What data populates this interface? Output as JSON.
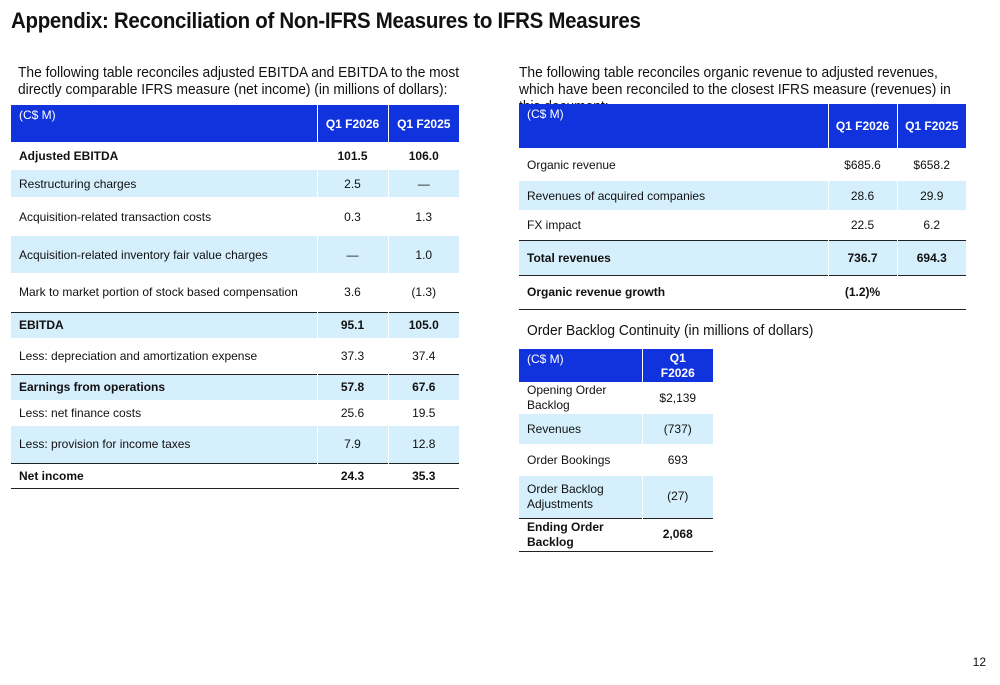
{
  "title": "Appendix: Reconciliation of Non-IFRS Measures to IFRS Measures",
  "page_number": "12",
  "table1": {
    "intro": "The following table reconciles adjusted EBITDA and EBITDA to the most directly comparable IFRS measure (net income) (in millions of dollars):",
    "headers": [
      "(C$ M)",
      "Q1 F2026",
      "Q1 F2025"
    ],
    "rows": [
      {
        "label": "Adjusted EBITDA",
        "v1": "101.5",
        "v2": "106.0"
      },
      {
        "label": "Restructuring charges",
        "v1": "2.5",
        "v2": "—"
      },
      {
        "label": "Acquisition-related transaction costs",
        "v1": "0.3",
        "v2": "1.3"
      },
      {
        "label": "Acquisition-related inventory fair value charges",
        "v1": "—",
        "v2": "1.0"
      },
      {
        "label": "Mark to market portion of stock based compensation",
        "v1": "3.6",
        "v2": "(1.3)"
      },
      {
        "label": "EBITDA",
        "v1": "95.1",
        "v2": "105.0"
      },
      {
        "label": "Less: depreciation and amortization expense",
        "v1": "37.3",
        "v2": "37.4"
      },
      {
        "label": "Earnings from operations",
        "v1": "57.8",
        "v2": "67.6"
      },
      {
        "label": "Less: net finance costs",
        "v1": "25.6",
        "v2": "19.5"
      },
      {
        "label": "Less: provision for income taxes",
        "v1": "7.9",
        "v2": "12.8"
      },
      {
        "label": "Net income",
        "v1": "24.3",
        "v2": "35.3"
      }
    ]
  },
  "table2": {
    "intro": "The following table reconciles organic revenue to adjusted revenues, which have been reconciled to the closest IFRS measure (revenues) in this document:",
    "headers": [
      "(C$ M)",
      "Q1 F2026",
      "Q1 F2025"
    ],
    "rows": [
      {
        "label": "Organic revenue",
        "v1": "$685.6",
        "v2": "$658.2"
      },
      {
        "label": "Revenues of acquired companies",
        "v1": "28.6",
        "v2": "29.9"
      },
      {
        "label": "FX impact",
        "v1": "22.5",
        "v2": "6.2"
      },
      {
        "label": "Total revenues",
        "v1": "736.7",
        "v2": "694.3"
      },
      {
        "label": "Organic revenue growth",
        "v1": "(1.2)%",
        "v2": ""
      }
    ]
  },
  "table3": {
    "title": "Order Backlog Continuity (in millions of dollars)",
    "headers": [
      "(C$ M)",
      "Q1 F2026"
    ],
    "rows": [
      {
        "label": "Opening Order Backlog",
        "v1": "$2,139"
      },
      {
        "label": "Revenues",
        "v1": "(737)"
      },
      {
        "label": "Order Bookings",
        "v1": "693"
      },
      {
        "label": "Order Backlog Adjustments",
        "v1": "(27)"
      },
      {
        "label": "Ending Order Backlog",
        "v1": "2,068"
      }
    ]
  },
  "colors": {
    "header_blue": "#1133dd",
    "row_shade": "#d5effc"
  }
}
